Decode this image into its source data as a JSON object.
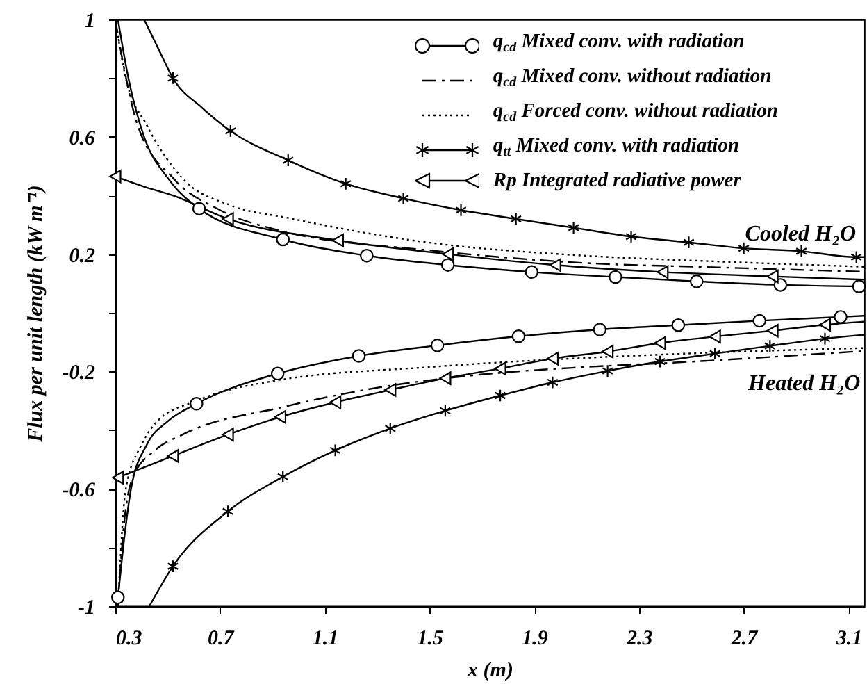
{
  "chart_data": {
    "type": "line",
    "xlabel": "x (m)",
    "ylabel": "Flux per unit length (kW m⁻¹)",
    "xlim": [
      0.3,
      3.16
    ],
    "ylim": [
      -1,
      1
    ],
    "xticks": [
      0.3,
      0.7,
      1.1,
      1.5,
      1.9,
      2.3,
      2.7,
      3.1
    ],
    "yticks": [
      -1,
      {
        "value": -0.8,
        "label": null
      },
      -0.6,
      {
        "value": -0.4,
        "label": null
      },
      -0.2,
      {
        "value": 0,
        "label": null
      },
      0.2,
      {
        "value": 0.4,
        "label": null
      },
      0.6,
      {
        "value": 0.8,
        "label": null
      },
      1
    ],
    "legend": "top right",
    "annotations": [
      "Cooled H₂O",
      "Heated H₂O"
    ],
    "series": [
      {
        "type": "line",
        "color": "#000000",
        "line_style": "solid",
        "x": [
          0.31,
          0.35,
          0.41,
          0.5,
          0.62,
          0.94,
          1.26,
          1.57,
          1.89,
          2.21,
          2.52,
          2.84,
          3.16
        ],
        "values": [
          1,
          0.8,
          0.6,
          0.46,
          0.355,
          0.25,
          0.195,
          0.163,
          0.139,
          0.122,
          0.107,
          0.095,
          0.09
        ]
      },
      {
        "type": "scatter",
        "name": "q$_{cd}$ Mixed conv. with radiation",
        "color": "#000000",
        "marker": "circle",
        "line_style": "solid",
        "x": [
          0.62,
          0.94,
          1.26,
          1.57,
          1.89,
          2.21,
          2.52,
          2.84,
          3.14
        ],
        "values": [
          0.355,
          0.25,
          0.195,
          0.163,
          0.139,
          0.122,
          0.107,
          0.095,
          0.09
        ]
      },
      {
        "type": "line",
        "name": "q$_{cd}$ Mixed conv. without radiation",
        "color": "#000000",
        "line_style": "dashed",
        "x": [
          0.3,
          0.33,
          0.385,
          0.52,
          0.7,
          0.93,
          1.5,
          2.07,
          2.6,
          3.16
        ],
        "values": [
          1,
          0.85,
          0.64,
          0.46,
          0.35,
          0.28,
          0.213,
          0.171,
          0.155,
          0.14
        ]
      },
      {
        "type": "line",
        "name": "q$_{cd}$ Forced conv. without radiation",
        "color": "#000000",
        "line_style": "dotted",
        "x": [
          0.3,
          0.34,
          0.42,
          0.555,
          0.745,
          0.95,
          1.5,
          2.07,
          2.6,
          3.16
        ],
        "values": [
          1,
          0.8,
          0.64,
          0.46,
          0.365,
          0.325,
          0.239,
          0.196,
          0.175,
          0.157
        ]
      },
      {
        "type": "line",
        "color": "#000000",
        "line_style": "solid",
        "x": [
          0.41,
          0.47,
          0.52,
          0.63,
          0.74,
          0.96,
          1.18,
          1.4,
          1.62,
          1.83,
          2.05,
          2.27,
          2.49,
          2.7,
          2.92,
          3.13,
          3.16
        ],
        "values": [
          1,
          0.89,
          0.8,
          0.7,
          0.62,
          0.52,
          0.44,
          0.39,
          0.35,
          0.32,
          0.29,
          0.26,
          0.24,
          0.22,
          0.21,
          0.19,
          0.19
        ]
      },
      {
        "type": "scatter",
        "name": "q$_{tt}$ Mixed conv. with radiation",
        "color": "#000000",
        "marker": "cross",
        "line_style": "solid",
        "x": [
          0.52,
          0.74,
          0.96,
          1.18,
          1.4,
          1.62,
          1.83,
          2.05,
          2.27,
          2.49,
          2.7,
          2.92,
          3.13
        ],
        "values": [
          0.8,
          0.62,
          0.52,
          0.44,
          0.39,
          0.35,
          0.32,
          0.29,
          0.26,
          0.24,
          0.22,
          0.21,
          0.19
        ]
      },
      {
        "type": "line",
        "color": "#000000",
        "line_style": "solid",
        "x": [
          0.3,
          0.41,
          0.52,
          0.73,
          1.15,
          1.57,
          1.98,
          2.39,
          2.81,
          3.16
        ],
        "values": [
          0.465,
          0.43,
          0.4,
          0.32,
          0.247,
          0.2,
          0.163,
          0.139,
          0.124,
          0.113
        ]
      },
      {
        "type": "scatter",
        "name": "Rp Integrated radiative power",
        "color": "#000000",
        "marker": "triangle",
        "line_style": "solid",
        "x": [
          0.3,
          0.73,
          1.15,
          1.57,
          1.98,
          2.39,
          2.81
        ],
        "values": [
          0.465,
          0.32,
          0.247,
          0.2,
          0.163,
          0.139,
          0.124
        ]
      },
      {
        "type": "line",
        "color": "#000000",
        "line_style": "solid",
        "x": [
          0.31,
          0.33,
          0.36,
          0.42,
          0.5,
          0.61,
          0.92,
          1.23,
          1.53,
          1.84,
          2.15,
          2.45,
          2.76,
          3.07,
          3.16
        ],
        "values": [
          -0.97,
          -0.8,
          -0.6,
          -0.45,
          -0.37,
          -0.31,
          -0.207,
          -0.147,
          -0.111,
          -0.08,
          -0.057,
          -0.042,
          -0.027,
          -0.014,
          -0.01
        ]
      },
      {
        "type": "scatter",
        "color": "#000000",
        "marker": "circle",
        "x": [
          0.31,
          0.61,
          0.92,
          1.23,
          1.53,
          1.84,
          2.15,
          2.45,
          2.76,
          3.07
        ],
        "values": [
          -0.97,
          -0.31,
          -0.207,
          -0.147,
          -0.111,
          -0.08,
          -0.057,
          -0.042,
          -0.027,
          -0.014
        ]
      },
      {
        "type": "line",
        "color": "#000000",
        "line_style": "dashed",
        "x": [
          0.31,
          0.33,
          0.367,
          0.45,
          0.557,
          0.936,
          1.31,
          1.69,
          2.07,
          2.45,
          3.16
        ],
        "values": [
          -1,
          -0.75,
          -0.56,
          -0.47,
          -0.415,
          -0.322,
          -0.254,
          -0.211,
          -0.186,
          -0.169,
          -0.13
        ]
      },
      {
        "type": "line",
        "color": "#000000",
        "line_style": "dotted",
        "x": [
          0.31,
          0.34,
          0.4,
          0.46,
          0.61,
          0.92,
          1.5,
          2.45,
          3.16
        ],
        "values": [
          -1,
          -0.6,
          -0.45,
          -0.37,
          -0.3,
          -0.23,
          -0.185,
          -0.14,
          -0.12
        ]
      },
      {
        "type": "line",
        "color": "#000000",
        "line_style": "solid",
        "x": [
          0.31,
          0.52,
          0.73,
          0.93,
          1.14,
          1.35,
          1.56,
          1.77,
          1.97,
          2.18,
          2.38,
          2.59,
          2.81,
          3.01,
          3.16
        ],
        "values": [
          -0.562,
          -0.488,
          -0.415,
          -0.355,
          -0.305,
          -0.263,
          -0.223,
          -0.19,
          -0.156,
          -0.132,
          -0.103,
          -0.081,
          -0.061,
          -0.041,
          -0.03
        ]
      },
      {
        "type": "scatter",
        "color": "#000000",
        "marker": "triangle",
        "x": [
          0.31,
          0.52,
          0.73,
          0.93,
          1.14,
          1.35,
          1.56,
          1.77,
          1.97,
          2.18,
          2.38,
          2.59,
          2.81,
          3.01
        ],
        "values": [
          -0.562,
          -0.488,
          -0.415,
          -0.355,
          -0.305,
          -0.263,
          -0.223,
          -0.19,
          -0.156,
          -0.132,
          -0.103,
          -0.081,
          -0.061,
          -0.041
        ]
      },
      {
        "type": "line",
        "color": "#000000",
        "line_style": "solid",
        "x": [
          0.43,
          0.52,
          0.73,
          0.94,
          1.14,
          1.35,
          1.56,
          1.77,
          1.97,
          2.18,
          2.38,
          2.59,
          2.8,
          3.01,
          3.16
        ],
        "values": [
          -1,
          -0.864,
          -0.677,
          -0.559,
          -0.469,
          -0.394,
          -0.334,
          -0.282,
          -0.237,
          -0.198,
          -0.166,
          -0.139,
          -0.113,
          -0.088,
          -0.075
        ]
      },
      {
        "type": "scatter",
        "color": "#000000",
        "marker": "cross",
        "x": [
          0.52,
          0.73,
          0.94,
          1.14,
          1.35,
          1.56,
          1.77,
          1.97,
          2.18,
          2.38,
          2.59,
          2.8,
          3.01
        ],
        "values": [
          -0.864,
          -0.677,
          -0.559,
          -0.469,
          -0.394,
          -0.334,
          -0.282,
          -0.237,
          -0.198,
          -0.166,
          -0.139,
          -0.113,
          -0.088
        ]
      }
    ]
  }
}
